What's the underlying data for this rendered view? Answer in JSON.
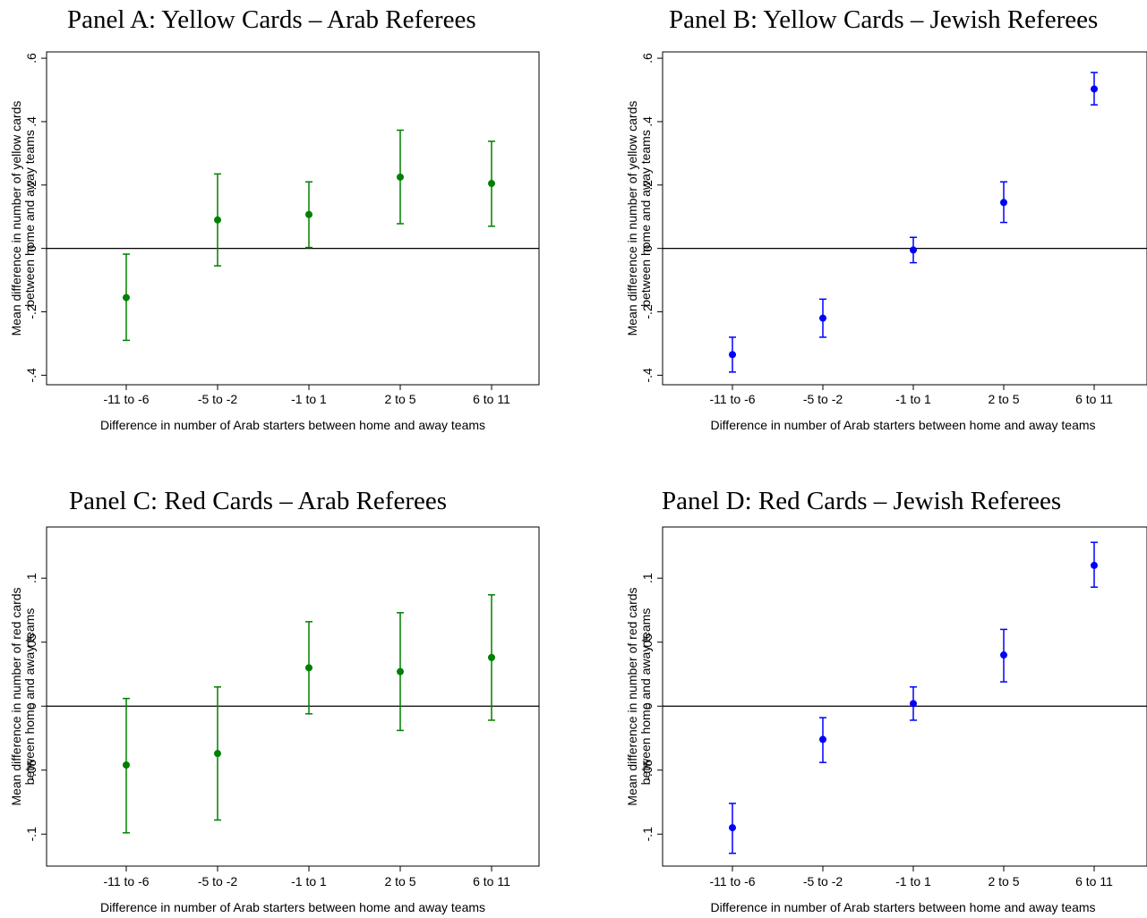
{
  "chart_data": [
    {
      "type": "scatter",
      "title": "Panel A: Yellow Cards – Arab Referees",
      "xlabel": "Difference in number of Arab starters between home and away teams",
      "ylabel": [
        "Mean difference in number of yellow cards",
        "between home and away teams"
      ],
      "categories": [
        "-11 to -6",
        "-5 to -2",
        "-1 to 1",
        "2 to 5",
        "6 to 11"
      ],
      "yticks": [
        -0.4,
        -0.2,
        0,
        0.2,
        0.4,
        0.6
      ],
      "ytick_labels": [
        "-.4",
        "-.2",
        "0",
        ".2",
        ".4",
        ".6"
      ],
      "ylim": [
        -0.43,
        0.62
      ],
      "reference_line": 0,
      "color": "#008000",
      "series": [
        {
          "values": [
            -0.155,
            0.09,
            0.107,
            0.225,
            0.205
          ],
          "ci_low": [
            -0.29,
            -0.055,
            0.003,
            0.078,
            0.07
          ],
          "ci_high": [
            -0.018,
            0.235,
            0.21,
            0.373,
            0.338
          ]
        }
      ]
    },
    {
      "type": "scatter",
      "title": "Panel B: Yellow Cards – Jewish Referees",
      "xlabel": "Difference in number of Arab starters between home and away teams",
      "ylabel": [
        "Mean difference in number of yellow cards",
        "between home and away teams"
      ],
      "categories": [
        "-11 to -6",
        "-5 to -2",
        "-1 to 1",
        "2 to 5",
        "6 to 11"
      ],
      "yticks": [
        -0.4,
        -0.2,
        0,
        0.2,
        0.4,
        0.6
      ],
      "ytick_labels": [
        "-.4",
        "-.2",
        "0",
        ".2",
        ".4",
        ".6"
      ],
      "ylim": [
        -0.43,
        0.62
      ],
      "reference_line": 0,
      "color": "#0000ff",
      "series": [
        {
          "values": [
            -0.335,
            -0.22,
            -0.005,
            0.145,
            0.503
          ],
          "ci_low": [
            -0.39,
            -0.28,
            -0.045,
            0.082,
            0.453
          ],
          "ci_high": [
            -0.28,
            -0.16,
            0.035,
            0.21,
            0.555
          ]
        }
      ]
    },
    {
      "type": "scatter",
      "title": "Panel C: Red Cards – Arab Referees",
      "xlabel": "Difference in number of Arab starters between home and away teams",
      "ylabel": [
        "Mean difference in number of red cards",
        "between home and away teams"
      ],
      "categories": [
        "-11 to -6",
        "-5 to -2",
        "-1 to 1",
        "2 to 5",
        "6 to 11"
      ],
      "yticks": [
        -0.1,
        -0.05,
        0,
        0.05,
        0.1
      ],
      "ytick_labels": [
        "-.1",
        "-.05",
        "0",
        ".05",
        ".1"
      ],
      "ylim": [
        -0.125,
        0.14
      ],
      "reference_line": 0,
      "color": "#008000",
      "series": [
        {
          "values": [
            -0.046,
            -0.037,
            0.03,
            0.027,
            0.038
          ],
          "ci_low": [
            -0.099,
            -0.089,
            -0.006,
            -0.019,
            -0.011
          ],
          "ci_high": [
            0.006,
            0.015,
            0.066,
            0.073,
            0.087
          ]
        }
      ]
    },
    {
      "type": "scatter",
      "title": "Panel D: Red Cards – Jewish Referees",
      "xlabel": "Difference in number of Arab starters between home and away teams",
      "ylabel": [
        "Mean difference in number of red cards",
        "between home and away teams"
      ],
      "categories": [
        "-11 to -6",
        "-5 to -2",
        "-1 to 1",
        "2 to 5",
        "6 to 11"
      ],
      "yticks": [
        -0.1,
        -0.05,
        0,
        0.05,
        0.1
      ],
      "ytick_labels": [
        "-.1",
        "-.05",
        "0",
        ".05",
        ".1"
      ],
      "ylim": [
        -0.125,
        0.14
      ],
      "reference_line": 0,
      "color": "#0000ff",
      "series": [
        {
          "values": [
            -0.095,
            -0.026,
            0.002,
            0.04,
            0.11
          ],
          "ci_low": [
            -0.115,
            -0.044,
            -0.011,
            0.019,
            0.093
          ],
          "ci_high": [
            -0.076,
            -0.009,
            0.015,
            0.06,
            0.128
          ]
        }
      ]
    }
  ]
}
